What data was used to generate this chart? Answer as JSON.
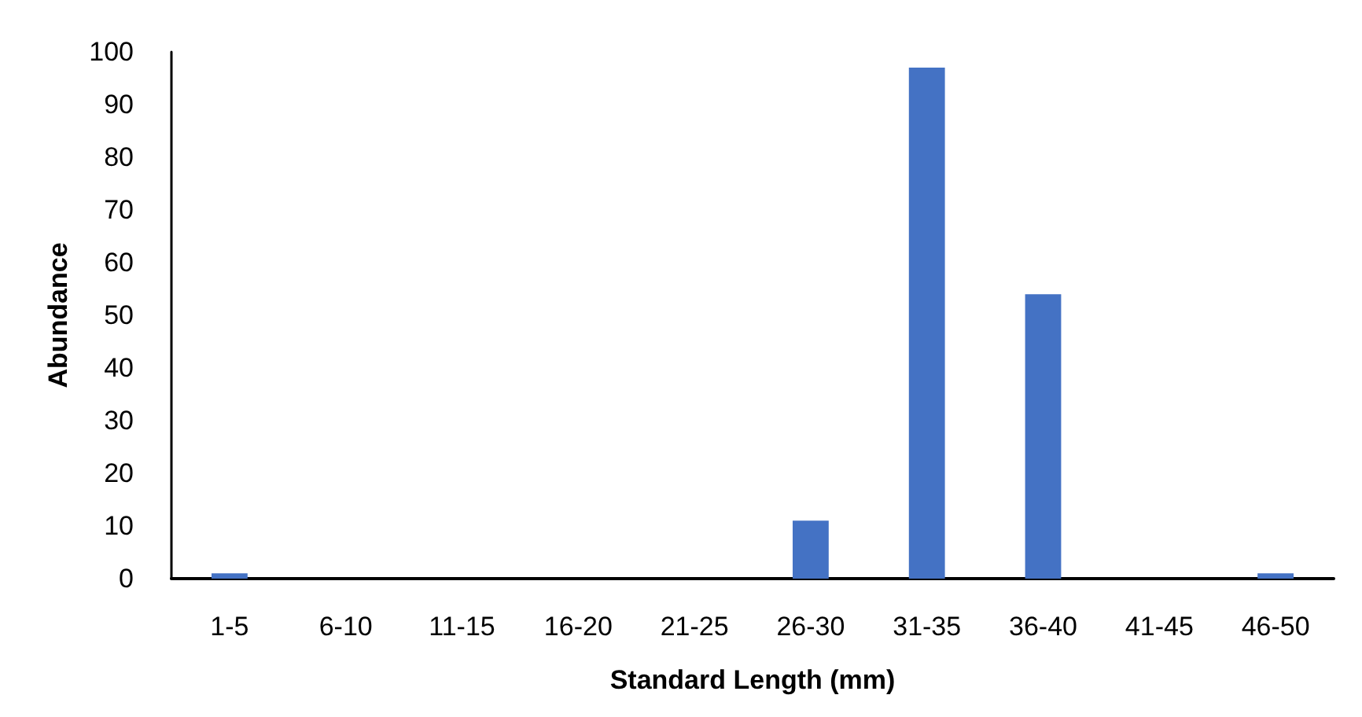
{
  "chart_data": {
    "type": "bar",
    "xlabel": "Standard Length (mm)",
    "ylabel": "Abundance",
    "categories": [
      "1-5",
      "6-10",
      "11-15",
      "16-20",
      "21-25",
      "26-30",
      "31-35",
      "36-40",
      "41-45",
      "46-50"
    ],
    "values": [
      1,
      0,
      0,
      0,
      0,
      11,
      97,
      54,
      0,
      1
    ],
    "color": "#4472c4",
    "ylim": [
      0,
      100
    ],
    "yticks": [
      0,
      10,
      20,
      30,
      40,
      50,
      60,
      70,
      80,
      90,
      100
    ]
  }
}
